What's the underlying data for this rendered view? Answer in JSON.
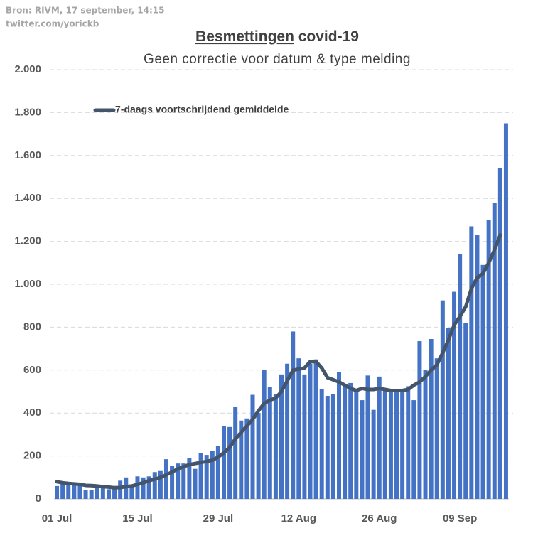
{
  "chart_data": {
    "type": "bar_line",
    "source": [
      "Bron: RIVM, 17 september, 14:15",
      "twitter.com/yorickb"
    ],
    "title_parts": [
      "Besmettingen",
      "covid-19"
    ],
    "subtitle": "Geen correctie voor datum & type melding",
    "categories": [
      "01 Jul",
      null,
      null,
      null,
      null,
      null,
      null,
      null,
      null,
      null,
      null,
      null,
      null,
      null,
      "15 Jul",
      null,
      null,
      null,
      null,
      null,
      null,
      null,
      null,
      null,
      null,
      null,
      null,
      null,
      "29 Jul",
      null,
      null,
      null,
      null,
      null,
      null,
      null,
      null,
      null,
      null,
      null,
      null,
      null,
      "12 Aug",
      null,
      null,
      null,
      null,
      null,
      null,
      null,
      null,
      null,
      null,
      null,
      null,
      null,
      "26 Aug",
      null,
      null,
      null,
      null,
      null,
      null,
      null,
      null,
      null,
      null,
      null,
      null,
      null,
      "09 Sep",
      null,
      null,
      null,
      null,
      null,
      null,
      null,
      null
    ],
    "series": [
      {
        "name": null,
        "kind": "bar",
        "color": "#4472c4",
        "values": [
          60,
          70,
          65,
          70,
          65,
          40,
          40,
          50,
          55,
          45,
          60,
          85,
          100,
          60,
          105,
          100,
          105,
          125,
          130,
          185,
          155,
          165,
          165,
          190,
          140,
          215,
          205,
          225,
          245,
          340,
          335,
          430,
          365,
          375,
          485,
          400,
          600,
          520,
          490,
          580,
          630,
          780,
          655,
          580,
          630,
          650,
          510,
          480,
          490,
          590,
          530,
          540,
          510,
          460,
          575,
          415,
          570,
          510,
          500,
          510,
          505,
          525,
          460,
          735,
          600,
          745,
          655,
          925,
          795,
          965,
          1140,
          820,
          1270,
          1230,
          1090,
          1300,
          1380,
          1540,
          1750
        ]
      },
      {
        "name": "7-daags voortschrijdend gemiddelde",
        "kind": "line",
        "color": "#44546a",
        "values": [
          80,
          75,
          72,
          70,
          68,
          63,
          62,
          60,
          57,
          55,
          52,
          53,
          57,
          60,
          68,
          75,
          85,
          92,
          100,
          112,
          125,
          140,
          150,
          160,
          165,
          170,
          175,
          180,
          195,
          215,
          240,
          280,
          310,
          340,
          370,
          410,
          445,
          460,
          470,
          500,
          550,
          600,
          605,
          610,
          640,
          640,
          610,
          565,
          555,
          545,
          530,
          515,
          505,
          515,
          510,
          510,
          515,
          510,
          505,
          505,
          505,
          510,
          530,
          545,
          570,
          600,
          625,
          680,
          740,
          810,
          850,
          895,
          980,
          1030,
          1050,
          1100,
          1160,
          1230,
          null
        ]
      }
    ],
    "ylim": [
      0,
      2000
    ],
    "yticks": [
      0,
      200,
      400,
      600,
      800,
      {
        "value": 1000,
        "label": "1.000"
      },
      {
        "value": 1200,
        "label": "1.200"
      },
      {
        "value": 1400,
        "label": "1.400"
      },
      {
        "value": 1600,
        "label": "1.600"
      },
      {
        "value": 1800,
        "label": "1.800"
      },
      {
        "value": 2000,
        "label": "2.000"
      }
    ],
    "grid": true,
    "legend": "top-left"
  }
}
